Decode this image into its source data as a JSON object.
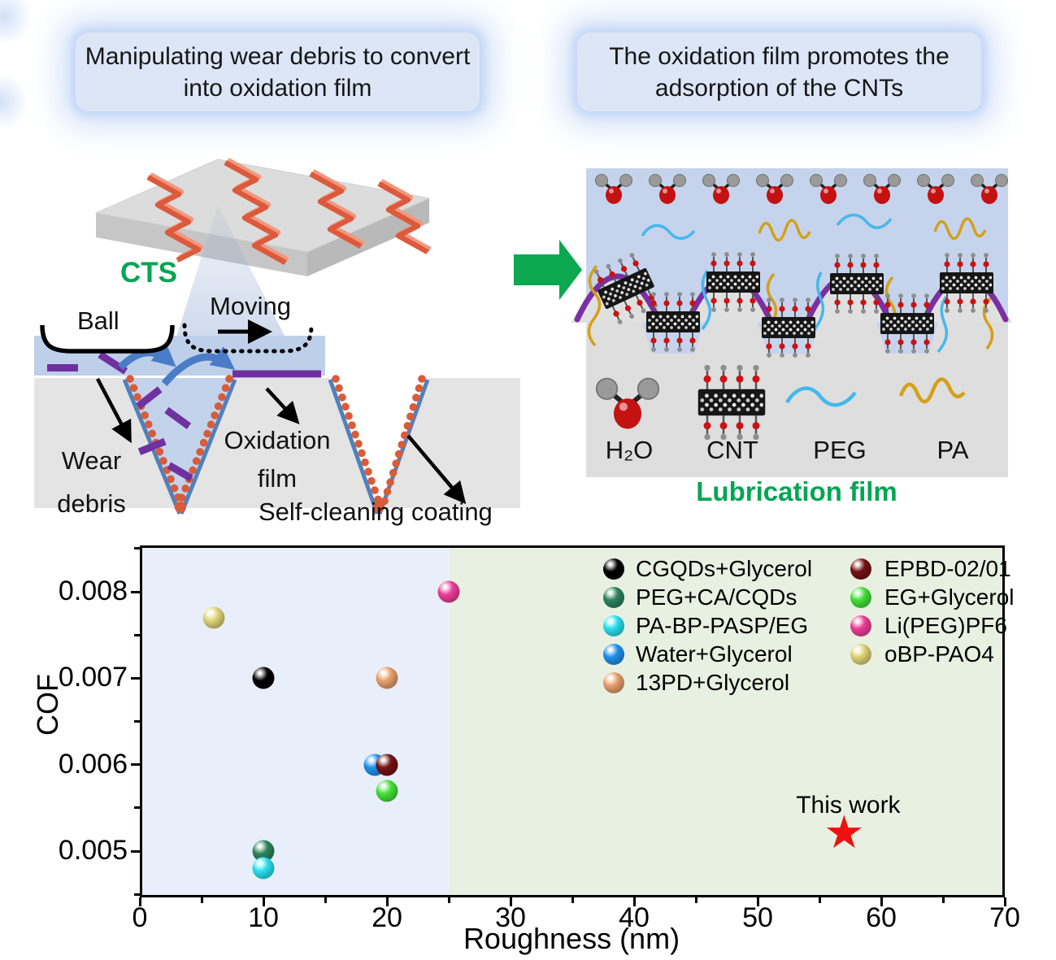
{
  "banner_left": {
    "text": "Manipulating wear debris to convert into oxidation film"
  },
  "banner_right": {
    "text": "The oxidation film promotes the adsorption of the CNTs"
  },
  "wear_diagram": {
    "surface_label": "CTS",
    "ball_label": "Ball",
    "moving_label": "Moving",
    "wear_debris_label": "Wear debris",
    "oxidation_film_label": "Oxidation film",
    "coating_label": "Self-cleaning coating"
  },
  "lubrication_diagram": {
    "water_label": "H₂O",
    "cnt_label": "CNT",
    "peg_label": "PEG",
    "pa_label": "PA",
    "caption": "Lubrication film"
  },
  "chart_data": {
    "type": "scatter",
    "title": "",
    "xlabel": "Roughness (nm)",
    "ylabel": "COF",
    "xlim": [
      0,
      70
    ],
    "ylim": [
      0.00446,
      0.00854
    ],
    "x_ticks": [
      0,
      10,
      20,
      30,
      40,
      50,
      60,
      70
    ],
    "y_ticks": [
      0.005,
      0.006,
      0.007,
      0.008
    ],
    "grid": false,
    "legend_position": "top-right",
    "background_regions": [
      {
        "x_start": 0,
        "x_end": 25,
        "color": "#e9effa"
      },
      {
        "x_start": 25,
        "x_end": 70,
        "color": "#e8f1e1"
      }
    ],
    "series": [
      {
        "name": "CGQDs+Glycerol",
        "color": "#000000",
        "x": 10,
        "y": 0.007
      },
      {
        "name": "PEG+CA/CQDs",
        "color": "#2e8b61",
        "x": 10,
        "y": 0.005
      },
      {
        "name": "PA-BP-PASP/EG",
        "color": "#2ce9f7",
        "x": 10,
        "y": 0.0048
      },
      {
        "name": "Water+Glycerol",
        "color": "#2196f3",
        "x": 19,
        "y": 0.006
      },
      {
        "name": "13PD+Glycerol",
        "color": "#f2a672",
        "x": 20,
        "y": 0.007
      },
      {
        "name": "EPBD-02/01",
        "color": "#7a1214",
        "x": 20,
        "y": 0.006
      },
      {
        "name": "EG+Glycerol",
        "color": "#47e93b",
        "x": 20,
        "y": 0.0057
      },
      {
        "name": "Li(PEG)PF6",
        "color": "#f5419e",
        "x": 25,
        "y": 0.008
      },
      {
        "name": "oBP-PAO4",
        "color": "#e8dc7c",
        "x": 6,
        "y": 0.0077
      }
    ],
    "annotation": {
      "label": "This work",
      "x": 57,
      "y": 0.0052,
      "marker": "star",
      "color": "#ee1111"
    }
  }
}
